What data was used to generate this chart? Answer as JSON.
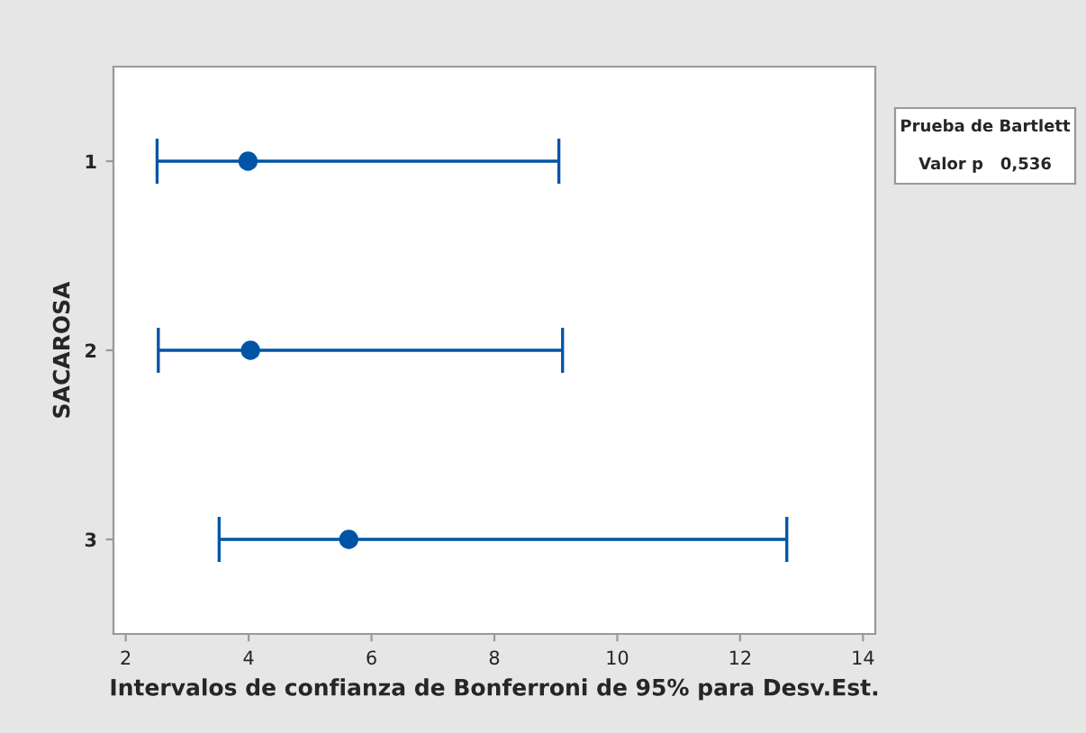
{
  "chart_data": {
    "type": "scatter",
    "orientation": "horizontal",
    "ylabel": "SACAROSA",
    "xlabel": "Intervalos de confianza de Bonferroni de 95% para Desv.Est.",
    "categories": [
      "1",
      "2",
      "3"
    ],
    "color": "#0054a6",
    "values": [
      3.99,
      4.03,
      5.63
    ],
    "errors": [
      [
        2.51,
        9.05
      ],
      [
        2.53,
        9.11
      ],
      [
        3.52,
        12.76
      ]
    ],
    "grid": false,
    "xlim": [
      1.8,
      14.2
    ],
    "xticks": [
      2,
      4,
      6,
      8,
      10,
      12,
      14
    ],
    "marker": "circle",
    "annotations": [
      "Prueba de Bartlett",
      "Valor p   0,536"
    ]
  }
}
